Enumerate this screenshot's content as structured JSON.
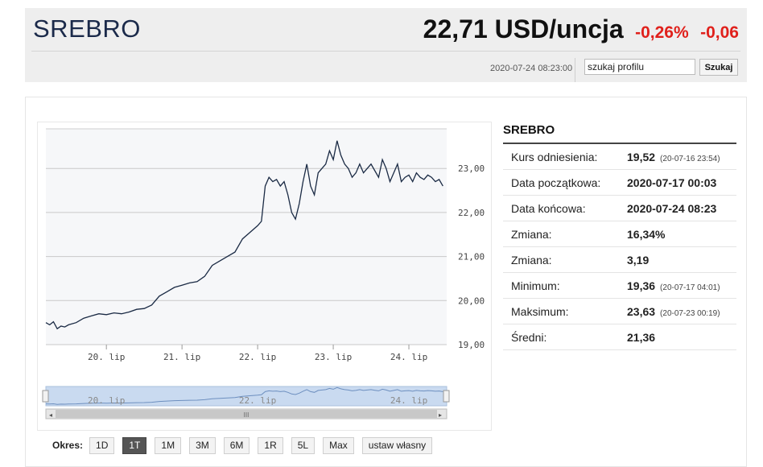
{
  "header": {
    "title": "SREBRO",
    "price": "22,71 USD/uncja",
    "change_pct": "-0,26%",
    "change_abs": "-0,06",
    "timestamp": "2020-07-24 08:23:00",
    "search_value": "szukaj profilu",
    "search_button": "Szukaj"
  },
  "info": {
    "title": "SREBRO",
    "rows": [
      {
        "label": "Kurs odniesienia:",
        "value": "19,52",
        "note": "(20-07-16 23:54)"
      },
      {
        "label": "Data początkowa:",
        "value": "2020-07-17 00:03",
        "note": ""
      },
      {
        "label": "Data końcowa:",
        "value": "2020-07-24 08:23",
        "note": ""
      },
      {
        "label": "Zmiana:",
        "value": "16,34%",
        "note": ""
      },
      {
        "label": "Zmiana:",
        "value": "3,19",
        "note": ""
      },
      {
        "label": "Minimum:",
        "value": "19,36",
        "note": "(20-07-17 04:01)"
      },
      {
        "label": "Maksimum:",
        "value": "23,63",
        "note": "(20-07-23 00:19)"
      },
      {
        "label": "Średni:",
        "value": "21,36",
        "note": ""
      }
    ]
  },
  "period": {
    "label": "Okres:",
    "buttons": [
      "1D",
      "1T",
      "1M",
      "3M",
      "6M",
      "1R",
      "5L",
      "Max",
      "ustaw własny"
    ],
    "active": "1T"
  },
  "colors": {
    "line": "#1a2a44",
    "negative": "#e0201b",
    "title": "#1b2a4a",
    "navigator_fill": "#c9daf0"
  },
  "chart_data": {
    "type": "line",
    "y_tick_labels": [
      "19,00",
      "20,00",
      "21,00",
      "22,00",
      "23,00"
    ],
    "y_ticks": [
      19,
      20,
      21,
      22,
      23
    ],
    "ylim": [
      19,
      23.9
    ],
    "x_tick_labels": [
      "20. lip",
      "21. lip",
      "22. lip",
      "23. lip",
      "24. lip"
    ],
    "x_ticks": [
      0.8,
      1.8,
      2.8,
      3.8,
      4.8
    ],
    "xlim": [
      0,
      5.3
    ],
    "navigator_labels": [
      "20. lip",
      "22. lip",
      "24. lip"
    ],
    "navigator_ticks": [
      0.8,
      2.8,
      4.8
    ],
    "navigator_scroll_symbol": "III",
    "series": [
      {
        "x": [
          0,
          0.05,
          0.1,
          0.15,
          0.2,
          0.25,
          0.3,
          0.4,
          0.5,
          0.6,
          0.7,
          0.8,
          0.9,
          1.0,
          1.1,
          1.2,
          1.3,
          1.4,
          1.5,
          1.6,
          1.7,
          1.8,
          1.9,
          2.0,
          2.1,
          2.2,
          2.3,
          2.4,
          2.5,
          2.6,
          2.7,
          2.8,
          2.85,
          2.9,
          2.95,
          3.0,
          3.05,
          3.1,
          3.15,
          3.2,
          3.25,
          3.3,
          3.35,
          3.4,
          3.45,
          3.5,
          3.55,
          3.6,
          3.65,
          3.7,
          3.75,
          3.8,
          3.85,
          3.9,
          3.95,
          4.0,
          4.05,
          4.1,
          4.15,
          4.2,
          4.25,
          4.3,
          4.35,
          4.4,
          4.45,
          4.5,
          4.55,
          4.6,
          4.65,
          4.7,
          4.75,
          4.8,
          4.85,
          4.9,
          4.95,
          5.0,
          5.05,
          5.1,
          5.15,
          5.2,
          5.25
        ],
        "y": [
          19.5,
          19.45,
          19.52,
          19.36,
          19.42,
          19.4,
          19.45,
          19.5,
          19.6,
          19.65,
          19.7,
          19.68,
          19.72,
          19.7,
          19.74,
          19.8,
          19.82,
          19.9,
          20.1,
          20.2,
          20.3,
          20.35,
          20.4,
          20.43,
          20.55,
          20.8,
          20.9,
          21.0,
          21.1,
          21.4,
          21.55,
          21.7,
          21.8,
          22.6,
          22.8,
          22.7,
          22.75,
          22.6,
          22.7,
          22.4,
          22.0,
          21.85,
          22.2,
          22.7,
          23.1,
          22.6,
          22.4,
          22.9,
          23.0,
          23.1,
          23.4,
          23.2,
          23.63,
          23.3,
          23.1,
          23.0,
          22.8,
          22.9,
          23.1,
          22.9,
          23.0,
          23.1,
          22.95,
          22.8,
          23.2,
          23.0,
          22.7,
          22.9,
          23.1,
          22.7,
          22.8,
          22.85,
          22.7,
          22.9,
          22.8,
          22.75,
          22.85,
          22.8,
          22.7,
          22.75,
          22.6
        ]
      }
    ]
  }
}
